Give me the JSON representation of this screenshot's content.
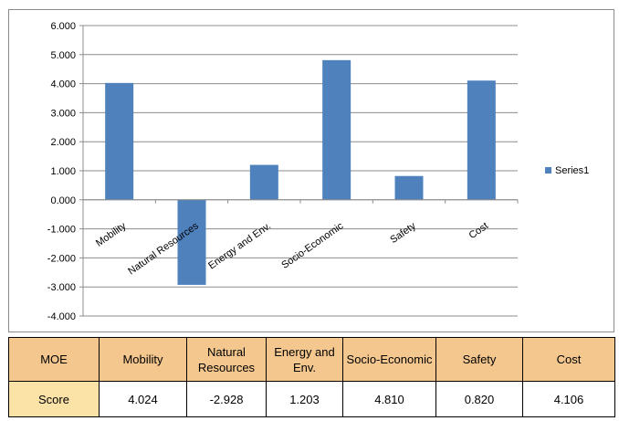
{
  "chart_data": {
    "type": "bar",
    "categories": [
      "Mobility",
      "Natural Resources",
      "Energy and Env.",
      "Socio-Economic",
      "Safety",
      "Cost"
    ],
    "series": [
      {
        "name": "Series1",
        "values": [
          4.024,
          -2.928,
          1.203,
          4.81,
          0.82,
          4.106
        ]
      }
    ],
    "ylim": [
      -4,
      6
    ],
    "yticks": [
      "6.000",
      "5.000",
      "4.000",
      "3.000",
      "2.000",
      "1.000",
      "0.000",
      "-1.000",
      "-2.000",
      "-3.000",
      "-4.000"
    ],
    "grid": true,
    "legend_position": "right",
    "bar_color": "#4f81bd"
  },
  "table": {
    "header_label": "MOE",
    "row_label": "Score",
    "columns": [
      "Mobility",
      "Natural Resources",
      "Energy and Env.",
      "Socio-Economic",
      "Safety",
      "Cost"
    ],
    "scores": [
      "4.024",
      "-2.928",
      "1.203",
      "4.810",
      "0.820",
      "4.106"
    ],
    "header_color": "#f4c78e",
    "row_label_color": "#fbe3a8"
  }
}
